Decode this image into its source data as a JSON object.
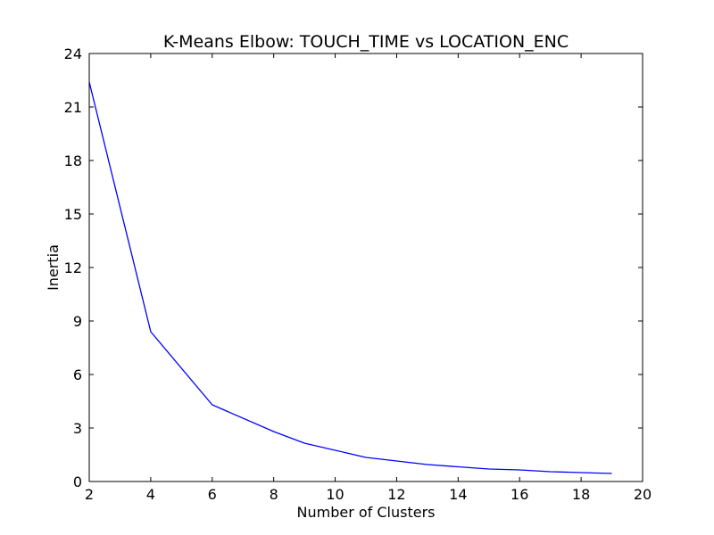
{
  "chart_data": {
    "type": "line",
    "title": "K-Means Elbow: TOUCH_TIME vs LOCATION_ENC",
    "xlabel": "Number of Clusters",
    "ylabel": "Inertia",
    "xlim": [
      2,
      20
    ],
    "ylim": [
      0,
      24
    ],
    "xticks": [
      2,
      4,
      6,
      8,
      10,
      12,
      14,
      16,
      18,
      20
    ],
    "yticks": [
      0,
      3,
      6,
      9,
      12,
      15,
      18,
      21,
      24
    ],
    "grid": false,
    "series": [
      {
        "color": "#0000ff",
        "x": [
          2,
          4,
          6,
          8,
          9,
          11,
          13,
          15,
          16,
          17,
          18,
          19
        ],
        "y": [
          22.4,
          8.4,
          4.3,
          2.8,
          2.15,
          1.35,
          0.95,
          0.7,
          0.65,
          0.55,
          0.5,
          0.45
        ]
      }
    ]
  }
}
